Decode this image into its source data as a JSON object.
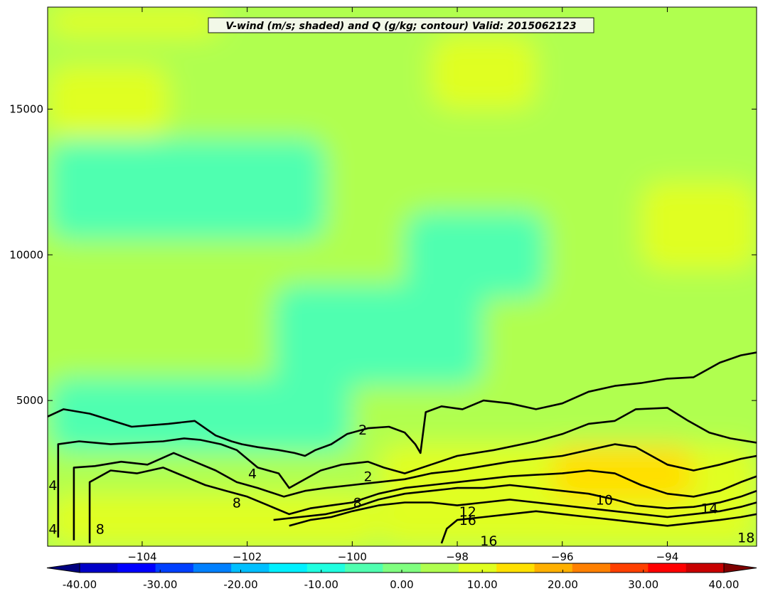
{
  "chart_data": {
    "type": "heatmap",
    "title": "V-wind (m/s; shaded) and Q (g/kg; contour) Valid: 2015062123",
    "xlabel": "",
    "ylabel": "",
    "xlim": [
      -105.8,
      -92.3
    ],
    "ylim": [
      0,
      18500
    ],
    "x_ticks": [
      -104,
      -102,
      -100,
      -98,
      -96,
      -94
    ],
    "x_tick_labels": [
      "−104",
      "−102",
      "−100",
      "−98",
      "−96",
      "−94"
    ],
    "y_ticks": [
      5000,
      10000,
      15000
    ],
    "y_tick_labels": [
      "5000",
      "10000",
      "15000"
    ],
    "shading": {
      "variable": "V-wind (m/s)",
      "colorbar_ticks": [
        -40,
        -30,
        -20,
        -10,
        0,
        10,
        20,
        30,
        40
      ],
      "colorbar_tick_labels": [
        "-40.00",
        "-30.00",
        "-20.00",
        "-10.00",
        "0.00",
        "10.00",
        "20.00",
        "30.00",
        "40.00"
      ],
      "colors": [
        "#00007f",
        "#0000c8",
        "#0000ff",
        "#0040ff",
        "#0080ff",
        "#00bfff",
        "#00f0ff",
        "#20ffe0",
        "#50ffb0",
        "#80ff80",
        "#b0ff50",
        "#e0ff20",
        "#ffe000",
        "#ffb000",
        "#ff8000",
        "#ff4000",
        "#ff0000",
        "#c80000",
        "#7f0000"
      ],
      "field_regions": [
        {
          "x": [
            -105.8,
            -92.3
          ],
          "y": [
            0,
            18500
          ],
          "v": 3
        },
        {
          "x": [
            -105.8,
            -100.5
          ],
          "y": [
            10500,
            14000
          ],
          "v": -4
        },
        {
          "x": [
            -99.0,
            -96.3
          ],
          "y": [
            8500,
            11500
          ],
          "v": -7
        },
        {
          "x": [
            -101.5,
            -97.5
          ],
          "y": [
            5500,
            9000
          ],
          "v": -3
        },
        {
          "x": [
            -105.8,
            -100.0
          ],
          "y": [
            3200,
            5800
          ],
          "v": -6
        },
        {
          "x": [
            -105.8,
            -103.5
          ],
          "y": [
            14000,
            16500
          ],
          "v": 8
        },
        {
          "x": [
            -98.5,
            -96.5
          ],
          "y": [
            15000,
            17500
          ],
          "v": 8
        },
        {
          "x": [
            -94.5,
            -92.3
          ],
          "y": [
            9500,
            12500
          ],
          "v": 9
        },
        {
          "x": [
            -105.8,
            -102.5
          ],
          "y": [
            17500,
            18500
          ],
          "v": 8
        },
        {
          "x": [
            -99.5,
            -92.3
          ],
          "y": [
            0,
            3500
          ],
          "v": 10
        },
        {
          "x": [
            -96.2,
            -93.5
          ],
          "y": [
            1500,
            3500
          ],
          "v": 14
        },
        {
          "x": [
            -105.8,
            -99.5
          ],
          "y": [
            0,
            1800
          ],
          "v": 8
        }
      ]
    },
    "contours": {
      "variable": "Q (g/kg)",
      "labels": [
        {
          "text": "2",
          "x": -99.8,
          "y": 4000
        },
        {
          "text": "2",
          "x": -99.7,
          "y": 2400
        },
        {
          "text": "4",
          "x": -101.9,
          "y": 2500
        },
        {
          "text": "4",
          "x": -105.7,
          "y": 2100
        },
        {
          "text": "4",
          "x": -105.7,
          "y": 600
        },
        {
          "text": "8",
          "x": -102.2,
          "y": 1500
        },
        {
          "text": "8",
          "x": -104.8,
          "y": 600
        },
        {
          "text": "8",
          "x": -99.9,
          "y": 1500
        },
        {
          "text": "10",
          "x": -95.2,
          "y": 1600
        },
        {
          "text": "12",
          "x": -97.8,
          "y": 1200
        },
        {
          "text": "14",
          "x": -93.2,
          "y": 1300
        },
        {
          "text": "16",
          "x": -97.8,
          "y": 900
        },
        {
          "text": "16",
          "x": -97.4,
          "y": 200
        },
        {
          "text": "18",
          "x": -92.5,
          "y": 300
        }
      ],
      "lines": [
        {
          "level": 2,
          "points": [
            [
              -105.8,
              4450
            ],
            [
              -105.5,
              4700
            ],
            [
              -105.0,
              4550
            ],
            [
              -104.2,
              4100
            ],
            [
              -103.5,
              4200
            ],
            [
              -103.0,
              4300
            ],
            [
              -102.6,
              3800
            ],
            [
              -102.3,
              3600
            ],
            [
              -102.1,
              3500
            ],
            [
              -101.8,
              3400
            ],
            [
              -101.4,
              3300
            ],
            [
              -101.1,
              3200
            ],
            [
              -100.9,
              3100
            ],
            [
              -100.7,
              3300
            ],
            [
              -100.4,
              3500
            ],
            [
              -100.1,
              3850
            ],
            [
              -99.7,
              4050
            ],
            [
              -99.3,
              4100
            ],
            [
              -99.0,
              3900
            ],
            [
              -98.8,
              3500
            ],
            [
              -98.7,
              3200
            ],
            [
              -98.6,
              4600
            ],
            [
              -98.3,
              4800
            ],
            [
              -97.9,
              4700
            ],
            [
              -97.5,
              5000
            ],
            [
              -97.0,
              4900
            ],
            [
              -96.5,
              4700
            ],
            [
              -96.0,
              4900
            ],
            [
              -95.5,
              5300
            ],
            [
              -95.0,
              5500
            ],
            [
              -94.5,
              5600
            ],
            [
              -94.0,
              5750
            ],
            [
              -93.5,
              5800
            ],
            [
              -93.0,
              6300
            ],
            [
              -92.6,
              6550
            ],
            [
              -92.3,
              6650
            ]
          ]
        },
        {
          "level": 4,
          "points": [
            [
              -105.6,
              300
            ],
            [
              -105.6,
              3500
            ],
            [
              -105.2,
              3600
            ],
            [
              -104.6,
              3500
            ],
            [
              -104.1,
              3550
            ],
            [
              -103.6,
              3600
            ],
            [
              -103.2,
              3700
            ],
            [
              -102.9,
              3650
            ],
            [
              -102.5,
              3500
            ],
            [
              -102.2,
              3300
            ],
            [
              -101.8,
              2700
            ],
            [
              -101.4,
              2500
            ],
            [
              -101.2,
              2000
            ],
            [
              -100.9,
              2300
            ],
            [
              -100.6,
              2600
            ],
            [
              -100.2,
              2800
            ],
            [
              -99.7,
              2900
            ],
            [
              -99.4,
              2700
            ],
            [
              -99.0,
              2500
            ],
            [
              -98.5,
              2800
            ],
            [
              -98.0,
              3100
            ],
            [
              -97.3,
              3300
            ],
            [
              -96.5,
              3600
            ],
            [
              -96.0,
              3850
            ],
            [
              -95.5,
              4200
            ],
            [
              -95.0,
              4300
            ],
            [
              -94.6,
              4700
            ],
            [
              -94.0,
              4750
            ],
            [
              -93.6,
              4300
            ],
            [
              -93.2,
              3900
            ],
            [
              -92.8,
              3700
            ],
            [
              -92.3,
              3550
            ]
          ]
        },
        {
          "level": 6,
          "points": [
            [
              -105.3,
              200
            ],
            [
              -105.3,
              2700
            ],
            [
              -104.9,
              2750
            ],
            [
              -104.4,
              2900
            ],
            [
              -103.9,
              2800
            ],
            [
              -103.4,
              3200
            ],
            [
              -103.0,
              2900
            ],
            [
              -102.6,
              2600
            ],
            [
              -102.2,
              2200
            ],
            [
              -101.8,
              2000
            ],
            [
              -101.3,
              1700
            ],
            [
              -100.9,
              1900
            ],
            [
              -100.5,
              2000
            ],
            [
              -100.0,
              2100
            ],
            [
              -99.5,
              2200
            ],
            [
              -99.0,
              2300
            ],
            [
              -98.5,
              2500
            ],
            [
              -98.0,
              2600
            ],
            [
              -97.5,
              2750
            ],
            [
              -97.0,
              2900
            ],
            [
              -96.5,
              3000
            ],
            [
              -96.0,
              3100
            ],
            [
              -95.5,
              3300
            ],
            [
              -95.0,
              3500
            ],
            [
              -94.6,
              3400
            ],
            [
              -94.0,
              2800
            ],
            [
              -93.5,
              2600
            ],
            [
              -93.0,
              2800
            ],
            [
              -92.6,
              3000
            ],
            [
              -92.3,
              3100
            ]
          ]
        },
        {
          "level": 8,
          "points": [
            [
              -105.0,
              100
            ],
            [
              -105.0,
              2200
            ],
            [
              -104.6,
              2600
            ],
            [
              -104.1,
              2500
            ],
            [
              -103.6,
              2700
            ],
            [
              -103.2,
              2400
            ],
            [
              -102.8,
              2100
            ],
            [
              -102.4,
              1900
            ],
            [
              -102.0,
              1700
            ],
            [
              -101.6,
              1400
            ],
            [
              -101.2,
              1100
            ],
            [
              -100.8,
              1300
            ],
            [
              -100.4,
              1400
            ],
            [
              -100.0,
              1500
            ],
            [
              -99.5,
              1800
            ],
            [
              -99.0,
              2000
            ],
            [
              -98.5,
              2100
            ],
            [
              -98.0,
              2200
            ],
            [
              -97.5,
              2300
            ],
            [
              -97.0,
              2400
            ],
            [
              -96.5,
              2450
            ],
            [
              -96.0,
              2500
            ],
            [
              -95.5,
              2600
            ],
            [
              -95.0,
              2500
            ],
            [
              -94.5,
              2100
            ],
            [
              -94.0,
              1800
            ],
            [
              -93.5,
              1700
            ],
            [
              -93.0,
              1900
            ],
            [
              -92.6,
              2200
            ],
            [
              -92.3,
              2400
            ]
          ]
        },
        {
          "level": 10,
          "points": [
            [
              -101.5,
              900
            ],
            [
              -101.0,
              1000
            ],
            [
              -100.5,
              1100
            ],
            [
              -100.0,
              1300
            ],
            [
              -99.5,
              1600
            ],
            [
              -99.0,
              1800
            ],
            [
              -98.5,
              1900
            ],
            [
              -98.0,
              2000
            ],
            [
              -97.5,
              2000
            ],
            [
              -97.0,
              2100
            ],
            [
              -96.5,
              2000
            ],
            [
              -96.0,
              1900
            ],
            [
              -95.5,
              1800
            ],
            [
              -95.0,
              1600
            ],
            [
              -94.6,
              1400
            ],
            [
              -94.0,
              1300
            ],
            [
              -93.5,
              1350
            ],
            [
              -93.0,
              1500
            ],
            [
              -92.6,
              1700
            ],
            [
              -92.3,
              1900
            ]
          ]
        },
        {
          "level": 12,
          "points": [
            [
              -101.2,
              700
            ],
            [
              -100.8,
              900
            ],
            [
              -100.4,
              1000
            ],
            [
              -100.0,
              1200
            ],
            [
              -99.5,
              1400
            ],
            [
              -99.0,
              1500
            ],
            [
              -98.5,
              1500
            ],
            [
              -98.0,
              1400
            ],
            [
              -97.5,
              1500
            ],
            [
              -97.0,
              1600
            ],
            [
              -96.5,
              1500
            ],
            [
              -96.0,
              1400
            ],
            [
              -95.5,
              1300
            ],
            [
              -95.0,
              1200
            ],
            [
              -94.5,
              1100
            ],
            [
              -94.0,
              1000
            ],
            [
              -93.5,
              1100
            ],
            [
              -93.0,
              1200
            ],
            [
              -92.6,
              1350
            ],
            [
              -92.3,
              1500
            ]
          ]
        },
        {
          "level": 16,
          "points": [
            [
              -98.3,
              100
            ],
            [
              -98.2,
              600
            ],
            [
              -98.0,
              900
            ],
            [
              -97.5,
              1000
            ],
            [
              -97.0,
              1100
            ],
            [
              -96.5,
              1200
            ],
            [
              -96.0,
              1100
            ],
            [
              -95.5,
              1000
            ],
            [
              -95.0,
              900
            ],
            [
              -94.5,
              800
            ],
            [
              -94.0,
              700
            ],
            [
              -93.5,
              800
            ],
            [
              -93.0,
              900
            ],
            [
              -92.6,
              1000
            ],
            [
              -92.3,
              1100
            ]
          ]
        }
      ]
    }
  }
}
